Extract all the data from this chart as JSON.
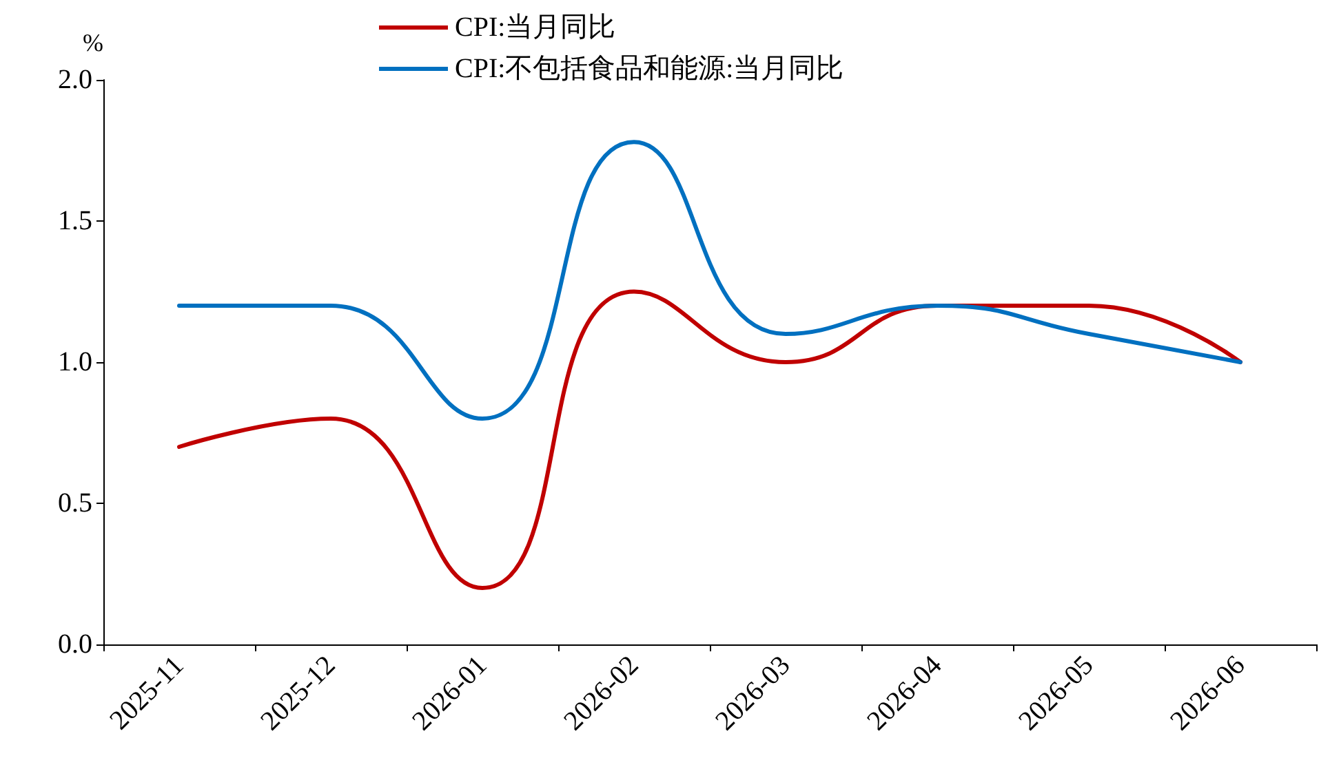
{
  "chart_data": {
    "type": "line",
    "ylabel": "%",
    "categories": [
      "2025-11",
      "2025-12",
      "2026-01",
      "2026-02",
      "2026-03",
      "2026-04",
      "2026-05",
      "2026-06"
    ],
    "series": [
      {
        "name": "CPI:当月同比",
        "color": "#c00000",
        "values": [
          0.7,
          0.8,
          0.2,
          1.25,
          1.0,
          1.2,
          1.2,
          1.0
        ]
      },
      {
        "name": "CPI:不包括食品和能源:当月同比",
        "color": "#0070c0",
        "values": [
          1.2,
          1.2,
          0.8,
          1.78,
          1.1,
          1.2,
          1.1,
          1.0
        ]
      }
    ],
    "ylim": [
      0,
      2
    ],
    "yticks": [
      {
        "value": 0,
        "label": "0.0"
      },
      0.5,
      {
        "value": 1,
        "label": "1.0"
      },
      1.5,
      {
        "value": 2,
        "label": "2.0"
      }
    ],
    "grid": false,
    "legend": "top",
    "marker": "none",
    "line_style": "solid"
  }
}
